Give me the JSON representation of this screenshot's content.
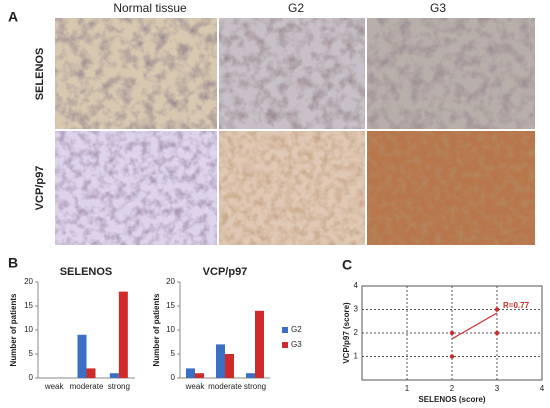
{
  "figure": {
    "panel_labels": [
      "A",
      "B",
      "C"
    ],
    "column_headers": [
      "Normal  tissue",
      "G2",
      "G3"
    ],
    "row_labels": [
      "SELENOS",
      "VCP/p97"
    ]
  },
  "chart_data": [
    {
      "type": "bar",
      "title": "SELENOS",
      "ylabel": "Number of patients",
      "categories": [
        "weak",
        "moderate",
        "strong"
      ],
      "series": [
        {
          "name": "G2",
          "color": "#3a6fc4",
          "values": [
            0,
            9,
            1
          ]
        },
        {
          "name": "G3",
          "color": "#cf2b2b",
          "values": [
            0,
            2,
            18
          ]
        }
      ],
      "ylim": [
        0,
        20
      ],
      "yticks": [
        0,
        5,
        10,
        15,
        20
      ],
      "legend": false
    },
    {
      "type": "bar",
      "title": "VCP/p97",
      "ylabel": "Number of patients",
      "categories": [
        "weak",
        "moderate",
        "strong"
      ],
      "series": [
        {
          "name": "G2",
          "color": "#3a6fc4",
          "values": [
            2,
            7,
            1
          ]
        },
        {
          "name": "G3",
          "color": "#cf2b2b",
          "values": [
            1,
            5,
            14
          ]
        }
      ],
      "ylim": [
        0,
        20
      ],
      "yticks": [
        0,
        5,
        10,
        15,
        20
      ],
      "legend": "right"
    },
    {
      "type": "scatter",
      "xlabel": "SELENOS (score)",
      "ylabel": "VCP/p97 (score)",
      "x": [
        2,
        2,
        3,
        3
      ],
      "values": [
        2,
        1,
        3,
        2
      ],
      "color": "#cf2b2b",
      "fit": {
        "x": [
          2,
          3
        ],
        "y": [
          1.75,
          2.85
        ],
        "color": "#cf2b2b"
      },
      "annotation": "R=0.77",
      "xlim": [
        0,
        4
      ],
      "ylim": [
        0,
        4
      ],
      "xticks": [
        1,
        2,
        3,
        4
      ],
      "yticks": [
        1,
        2,
        3,
        4
      ],
      "grid": true
    }
  ]
}
